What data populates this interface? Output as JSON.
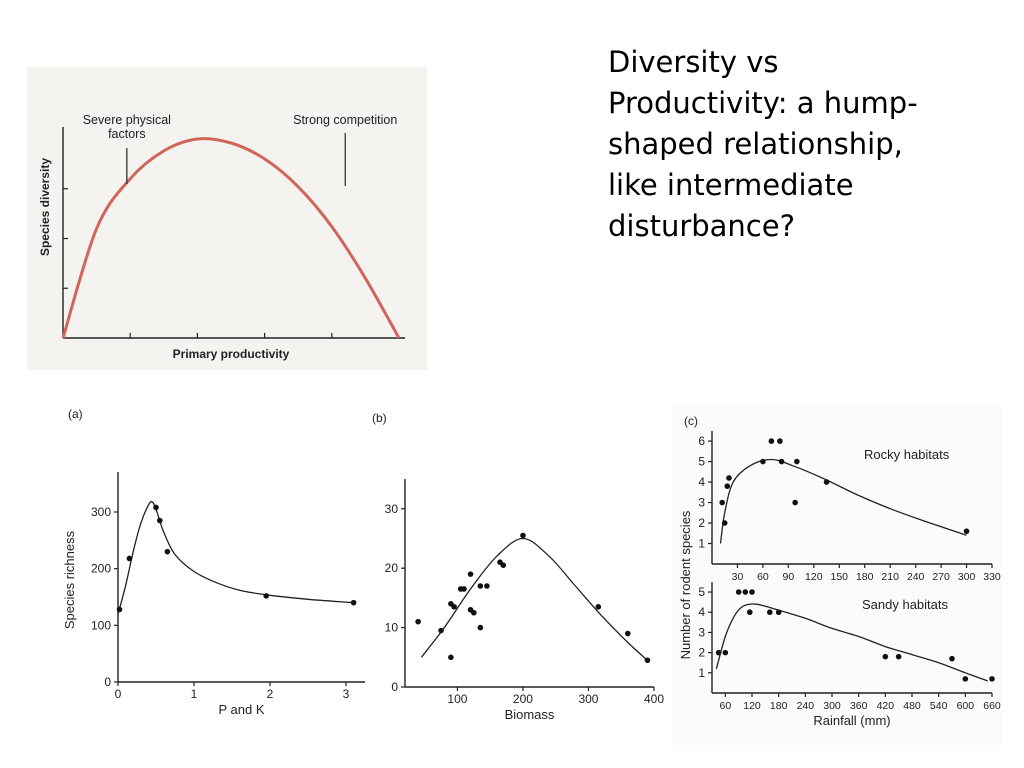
{
  "slide": {
    "title_lines": [
      "Diversity vs",
      "Productivity:  a hump-",
      "shaped relationship,",
      "like intermediate",
      "disturbance?"
    ]
  },
  "chart_data": [
    {
      "type": "line",
      "xlabel": "Primary productivity",
      "ylabel": "Species diversity",
      "annotations": [
        {
          "text_lines": [
            "Severe physical",
            "factors"
          ],
          "x": 0.19
        },
        {
          "text_lines": [
            "Strong competition"
          ],
          "x": 0.84
        }
      ],
      "xlim": [
        0,
        1
      ],
      "ylim": [
        0,
        1
      ],
      "series": [
        {
          "color": "#d0665a",
          "x": [
            0,
            0.1,
            0.2,
            0.3,
            0.4,
            0.5,
            0.6,
            0.7,
            0.8,
            0.9,
            1.0
          ],
          "y": [
            0,
            0.55,
            0.8,
            0.94,
            1.0,
            0.98,
            0.9,
            0.76,
            0.56,
            0.3,
            0
          ]
        }
      ],
      "color": "#d0665a"
    },
    {
      "type": "scatter",
      "panel_label": "(a)",
      "xlabel": "P and K",
      "ylabel": "Species richness",
      "xlim": [
        0,
        3.25
      ],
      "ylim": [
        0,
        360
      ],
      "xticks": [
        0,
        1,
        2,
        3
      ],
      "yticks": [
        0,
        100,
        200,
        300
      ],
      "points": [
        [
          0.02,
          128
        ],
        [
          0.15,
          218
        ],
        [
          0.5,
          308
        ],
        [
          0.55,
          285
        ],
        [
          0.65,
          230
        ],
        [
          1.95,
          152
        ],
        [
          3.1,
          140
        ]
      ],
      "curve": [
        [
          0,
          120
        ],
        [
          0.1,
          170
        ],
        [
          0.2,
          230
        ],
        [
          0.3,
          280
        ],
        [
          0.4,
          312
        ],
        [
          0.45,
          318
        ],
        [
          0.5,
          305
        ],
        [
          0.6,
          265
        ],
        [
          0.75,
          225
        ],
        [
          1.0,
          195
        ],
        [
          1.3,
          175
        ],
        [
          1.6,
          162
        ],
        [
          2.0,
          153
        ],
        [
          2.5,
          146
        ],
        [
          3.1,
          140
        ]
      ]
    },
    {
      "type": "scatter",
      "panel_label": "(b)",
      "xlabel": "Biomass",
      "ylabel": "",
      "xlim": [
        20,
        400
      ],
      "ylim": [
        0,
        34
      ],
      "xticks": [
        100,
        200,
        300,
        400
      ],
      "yticks": [
        0,
        10,
        20,
        30
      ],
      "points": [
        [
          40,
          11
        ],
        [
          75,
          9.5
        ],
        [
          90,
          14
        ],
        [
          90,
          5
        ],
        [
          95,
          13.5
        ],
        [
          105,
          16.5
        ],
        [
          110,
          16.5
        ],
        [
          120,
          13
        ],
        [
          120,
          19
        ],
        [
          125,
          12.5
        ],
        [
          135,
          10
        ],
        [
          135,
          17
        ],
        [
          145,
          17
        ],
        [
          165,
          21
        ],
        [
          170,
          20.5
        ],
        [
          200,
          25.5
        ],
        [
          315,
          13.5
        ],
        [
          360,
          9
        ],
        [
          390,
          4.5
        ]
      ],
      "curve": [
        [
          45,
          5
        ],
        [
          80,
          10
        ],
        [
          120,
          16.5
        ],
        [
          160,
          22
        ],
        [
          200,
          25
        ],
        [
          240,
          22
        ],
        [
          280,
          17
        ],
        [
          320,
          12
        ],
        [
          360,
          7.5
        ],
        [
          390,
          4.5
        ]
      ]
    },
    {
      "type": "scatter",
      "panel_label": "(c)",
      "title": "Rocky habitats",
      "xlabel": "",
      "ylabel": "Number of rodent species",
      "xlim": [
        0,
        330
      ],
      "ylim": [
        0,
        6.2
      ],
      "xticks": [
        30,
        60,
        90,
        120,
        150,
        180,
        210,
        240,
        270,
        300,
        330
      ],
      "yticks": [
        1,
        2,
        3,
        4,
        5,
        6
      ],
      "points": [
        [
          12,
          3
        ],
        [
          15,
          2
        ],
        [
          18,
          3.8
        ],
        [
          20,
          4.2
        ],
        [
          60,
          5
        ],
        [
          70,
          6
        ],
        [
          80,
          6
        ],
        [
          82,
          5
        ],
        [
          98,
          3
        ],
        [
          100,
          5
        ],
        [
          135,
          4
        ],
        [
          300,
          1.6
        ]
      ],
      "curve": [
        [
          10,
          1
        ],
        [
          15,
          2.5
        ],
        [
          25,
          4
        ],
        [
          45,
          4.8
        ],
        [
          70,
          5.1
        ],
        [
          95,
          4.8
        ],
        [
          130,
          4.2
        ],
        [
          170,
          3.4
        ],
        [
          210,
          2.7
        ],
        [
          250,
          2.1
        ],
        [
          300,
          1.4
        ]
      ]
    },
    {
      "type": "scatter",
      "title": "Sandy habitats",
      "xlabel": "Rainfall (mm)",
      "ylabel": "",
      "xlim": [
        30,
        660
      ],
      "ylim": [
        0,
        5.2
      ],
      "xticks": [
        60,
        120,
        180,
        240,
        300,
        360,
        420,
        480,
        540,
        600,
        660
      ],
      "yticks": [
        1,
        2,
        3,
        4,
        5
      ],
      "points": [
        [
          45,
          2
        ],
        [
          60,
          2
        ],
        [
          90,
          5
        ],
        [
          105,
          5
        ],
        [
          115,
          4
        ],
        [
          120,
          5
        ],
        [
          160,
          4
        ],
        [
          180,
          4
        ],
        [
          420,
          1.8
        ],
        [
          450,
          1.8
        ],
        [
          570,
          1.7
        ],
        [
          600,
          0.7
        ],
        [
          660,
          0.7
        ]
      ],
      "curve": [
        [
          40,
          1.2
        ],
        [
          60,
          2.8
        ],
        [
          80,
          3.8
        ],
        [
          100,
          4.3
        ],
        [
          130,
          4.4
        ],
        [
          180,
          4.1
        ],
        [
          240,
          3.7
        ],
        [
          300,
          3.2
        ],
        [
          360,
          2.8
        ],
        [
          420,
          2.3
        ],
        [
          480,
          1.9
        ],
        [
          540,
          1.5
        ],
        [
          600,
          1.0
        ],
        [
          650,
          0.6
        ]
      ]
    }
  ]
}
